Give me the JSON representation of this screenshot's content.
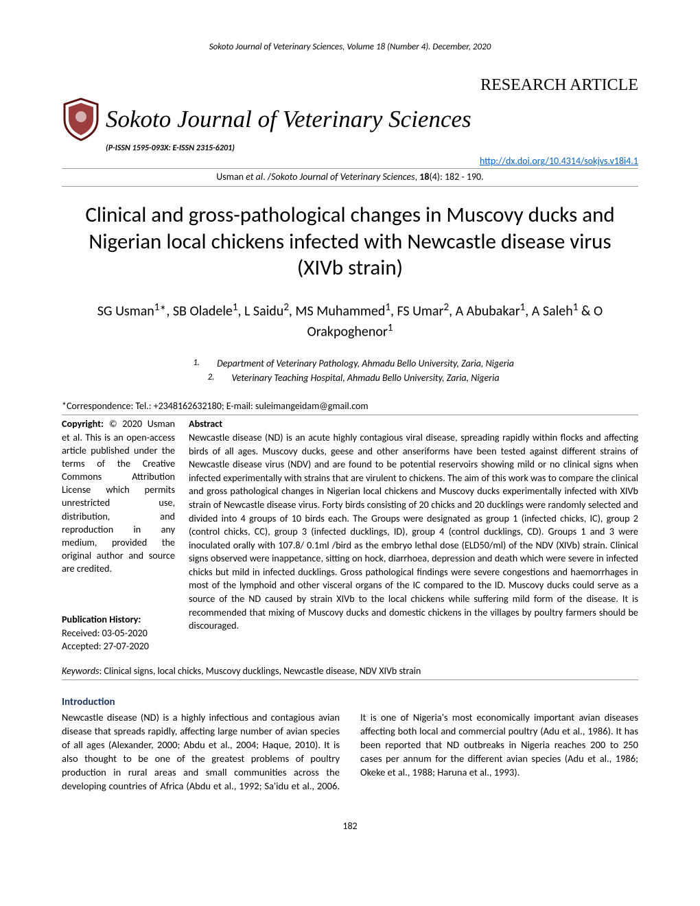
{
  "running_header": "Sokoto Journal of Veterinary Sciences, Volume 18 (Number 4). December, 2020",
  "article_type": "RESEARCH ARTICLE",
  "journal_name": "Sokoto Journal of Veterinary Sciences",
  "issn": "(P-ISSN 1595-093X: E-ISSN 2315-6201)",
  "doi_url": "http://dx.doi.org/10.4314/sokjvs.v18i4.1",
  "citation_prefix": "Usman ",
  "citation_etal": "et al",
  "citation_middle": ". /",
  "citation_journal": "Sokoto Journal of Veterinary Sciences",
  "citation_suffix": ", ",
  "citation_vol": "18",
  "citation_rest": "(4): 182 - 190.",
  "title": "Clinical and gross-pathological changes in Muscovy ducks and Nigerian local chickens infected with Newcastle disease virus (XIVb strain)",
  "authors_html": "SG Usman<sup>1</sup>*, SB Oladele<sup>1</sup>, L Saidu<sup>2</sup>, MS Muhammed<sup>1</sup>, FS Umar<sup>2</sup>, A Abubakar<sup>1</sup>, A Saleh<sup>1</sup> & O Orakpoghenor<sup>1</sup>",
  "affiliations": [
    {
      "num": "1.",
      "text": "Department of Veterinary Pathology, Ahmadu Bello University, Zaria, Nigeria"
    },
    {
      "num": "2.",
      "text": "Veterinary Teaching Hospital, Ahmadu Bello University, Zaria, Nigeria"
    }
  ],
  "correspondence": "*Correspondence: Tel.: +2348162632180; E-mail: suleimangeidam@gmail.com",
  "copyright_head": "Copyright:",
  "copyright_sym": "©",
  "copyright_year": "2020",
  "copyright_body": "Usman et al. This is an open-access article published under the terms of the Creative Commons Attribution License which permits unrestricted use, distribution, and reproduction in any medium, provided the original author and source are credited.",
  "pub_hist_head": "Publication History:",
  "pub_hist_received": "Received: 03-05-2020",
  "pub_hist_accepted": "Accepted: 27-07-2020",
  "abstract_head": "Abstract",
  "abstract_body": "Newcastle disease (ND) is an acute highly contagious viral disease, spreading rapidly within flocks and affecting birds of all ages. Muscovy ducks, geese and other anseriforms have been tested against different strains of Newcastle disease virus (NDV) and are found to be potential reservoirs showing mild or no clinical signs when infected experimentally with strains that are virulent to chickens. The aim of this work was to compare the clinical and gross pathological changes in Nigerian local chickens and Muscovy ducks experimentally infected with XIVb strain of Newcastle disease virus. Forty birds consisting of 20 chicks and 20 ducklings were randomly selected and divided into 4 groups of 10 birds each. The Groups were designated as group 1 (infected chicks, IC), group 2 (control chicks, CC), group 3 (infected ducklings, ID), group 4 (control ducklings, CD). Groups 1 and 3 were inoculated orally with 107.8/ 0.1ml /bird as the embryo lethal dose (ELD50/ml) of the NDV (XIVb) strain. Clinical signs observed were inappetance, sitting on hock, diarrhoea, depression and death which were severe in infected chicks but mild in infected ducklings. Gross pathological findings were severe congestions and haemorrhages in most of the lymphoid and other visceral organs of the IC compared to the ID. Muscovy ducks could serve as a source of the ND caused by strain XIVb to the local chickens while suffering mild form of the disease. It is recommended that mixing of Muscovy ducks and domestic chickens in the villages by poultry farmers should be discouraged.",
  "keywords_label": "Keywords",
  "keywords_text": ": Clinical signs, local chicks, Muscovy ducklings, Newcastle disease, NDV XIVb strain",
  "intro_head": "Introduction",
  "intro_body": "Newcastle disease (ND) is a highly infectious and contagious avian disease that spreads rapidly, affecting large number of avian species of all ages (Alexander, 2000; Abdu et al., 2004; Haque, 2010). It is also thought to be one of the greatest problems of poultry production in rural areas and small communities across the developing countries of Africa (Abdu et al., 1992; Sa'idu et al., 2006. It is one of Nigeria's most economically important avian diseases affecting both local and commercial poultry (Adu et al., 1986). It has been reported that ND outbreaks in Nigeria reaches 200 to 250 cases per annum for the different avian species (Adu et al., 1986; Okeke et al., 1988; Haruna et al., 1993).",
  "page_number": "182",
  "colors": {
    "link": "#0563c1",
    "section_head": "#1f3864",
    "rule": "#999999",
    "logo_ring": "#5b0f0f",
    "logo_inner": "#8b1a1a"
  }
}
